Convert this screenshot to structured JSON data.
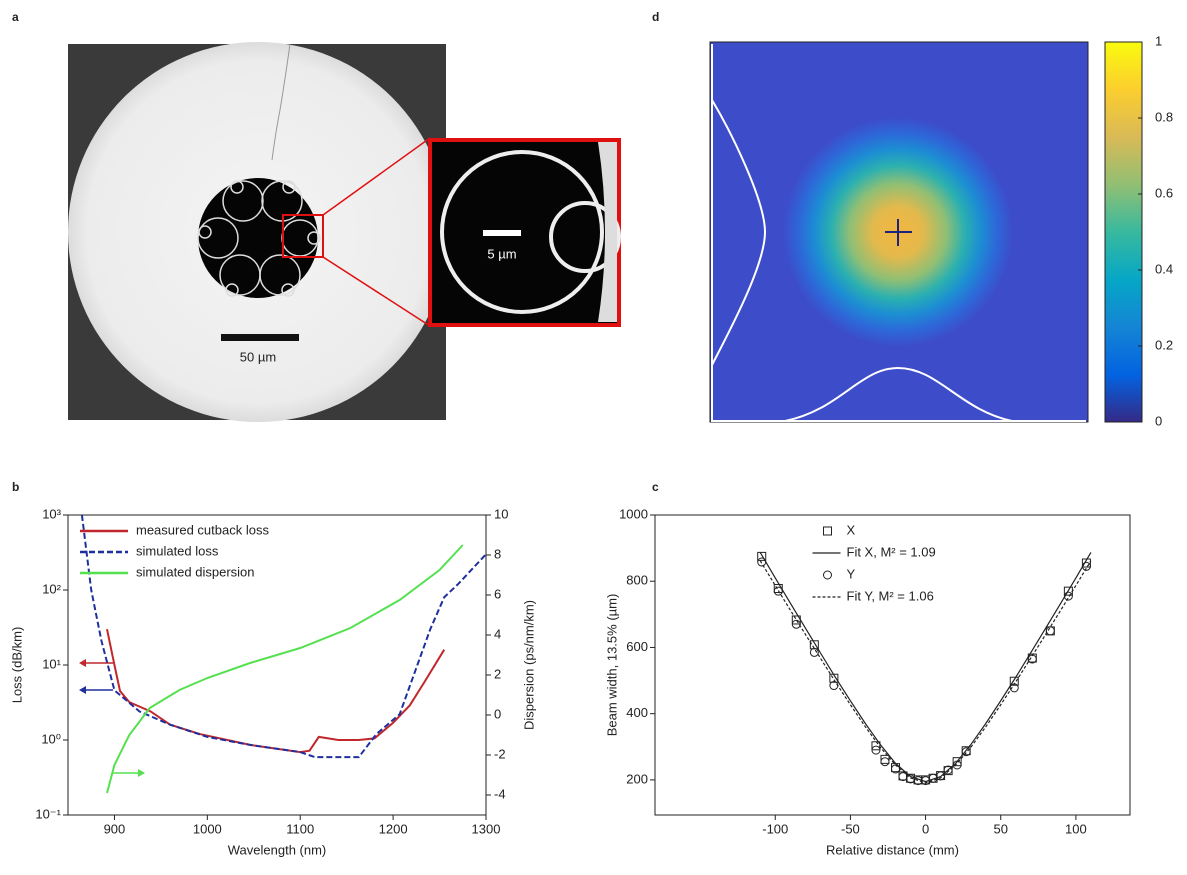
{
  "panel_labels": [
    "a",
    "d",
    "b",
    "c"
  ],
  "image_a": {
    "scale_bar_label": "50 µm",
    "inset_scale_bar_label": "5 µm"
  },
  "colorbar": {
    "lim": [
      0,
      1
    ],
    "ticks": [
      0,
      0.2,
      0.4,
      0.6,
      0.8,
      1
    ]
  },
  "chart_data": [
    {
      "type": "line",
      "xlabel": "Wavelength (nm)",
      "ylabel": "Loss (dB/km)",
      "y2label": "Dispersion (ps/nm/km)",
      "xlim": [
        850,
        1300
      ],
      "xticks": [
        900,
        1000,
        1100,
        1200,
        1300
      ],
      "ylim": [
        0.1,
        1000
      ],
      "ylog": true,
      "yticks": [
        {
          "value": 0.1,
          "label": "10⁻¹"
        },
        {
          "value": 1,
          "label": "10⁰"
        },
        {
          "value": 10,
          "label": "10¹"
        },
        {
          "value": 100,
          "label": "10²"
        },
        {
          "value": 1000,
          "label": "10³"
        }
      ],
      "y2lim": [
        -5,
        10
      ],
      "y2ticks": [
        -4,
        -2,
        0,
        2,
        4,
        6,
        8,
        10
      ],
      "legend": "upper left",
      "series": [
        {
          "name": "measured cutback loss",
          "color": "#c0282d",
          "style": "solid",
          "x": [
            892,
            900,
            906,
            916,
            939,
            960,
            992,
            1046,
            1100,
            1110,
            1120,
            1141,
            1163,
            1180,
            1200,
            1218,
            1234,
            1255
          ],
          "values": [
            30,
            10,
            4.5,
            3.2,
            2.4,
            1.6,
            1.2,
            0.86,
            0.69,
            0.72,
            1.1,
            1.0,
            1.0,
            1.05,
            1.7,
            2.9,
            6,
            16
          ]
        },
        {
          "name": "simulated loss",
          "color": "#1f2f9e",
          "style": "dashed",
          "x": [
            865,
            875,
            886,
            900,
            927,
            960,
            1000,
            1046,
            1100,
            1116,
            1163,
            1182,
            1207,
            1240,
            1255,
            1270,
            1300
          ],
          "values": [
            1000,
            100,
            21,
            4.6,
            2.4,
            1.6,
            1.1,
            0.86,
            0.69,
            0.59,
            0.59,
            1.2,
            2.2,
            30,
            80,
            120,
            300
          ]
        },
        {
          "name": "simulated dispersion",
          "color": "#55e050",
          "style": "solid",
          "axis": "y2",
          "x": [
            892,
            900,
            916,
            938,
            970,
            1000,
            1046,
            1100,
            1154,
            1207,
            1250,
            1275
          ],
          "values": [
            -3.9,
            -2.5,
            -1.0,
            0.35,
            1.25,
            1.85,
            2.6,
            3.35,
            4.35,
            5.75,
            7.25,
            8.5
          ]
        }
      ]
    },
    {
      "type": "scatter",
      "xlabel": "Relative distance (mm)",
      "ylabel": "Beam width, 13.5% (µm)",
      "xlim": [
        -180,
        136
      ],
      "xticks": [
        -100,
        -50,
        0,
        50,
        100
      ],
      "ylim": [
        94,
        1000
      ],
      "yticks": [
        200,
        400,
        600,
        800,
        1000
      ],
      "legend": "upper center",
      "series": [
        {
          "name": "X",
          "color": "#222222",
          "marker": "square",
          "x": [
            -109,
            -98,
            -86,
            -74,
            -61,
            -33,
            -27,
            -20,
            -15,
            -10,
            -5,
            0,
            5,
            10,
            15,
            21,
            27,
            59,
            71,
            83,
            95,
            107
          ],
          "values": [
            875,
            778,
            683,
            608,
            507,
            303,
            262,
            237,
            212,
            205,
            200,
            200,
            205,
            213,
            228,
            255,
            288,
            498,
            568,
            650,
            770,
            855
          ]
        },
        {
          "name": "Fit X, M² = 1.09",
          "color": "#222222",
          "style": "solid",
          "x": [
            -110,
            -100,
            -90,
            -80,
            -70,
            -60,
            -50,
            -40,
            -30,
            -20,
            -10,
            0,
            10,
            20,
            30,
            40,
            50,
            60,
            70,
            80,
            90,
            100,
            110
          ],
          "values": [
            887,
            810,
            734,
            659,
            584,
            510,
            439,
            370,
            306,
            250,
            210,
            195,
            210,
            250,
            306,
            370,
            439,
            510,
            584,
            659,
            734,
            810,
            887
          ]
        },
        {
          "name": "Y",
          "color": "#222222",
          "marker": "circle",
          "x": [
            -109,
            -98,
            -86,
            -74,
            -61,
            -33,
            -27,
            -20,
            -15,
            -10,
            -5,
            0,
            5,
            10,
            15,
            21,
            27,
            59,
            71,
            83,
            95,
            107
          ],
          "values": [
            858,
            770,
            670,
            585,
            485,
            290,
            255,
            233,
            210,
            203,
            198,
            198,
            205,
            212,
            230,
            245,
            285,
            478,
            565,
            650,
            755,
            845
          ]
        },
        {
          "name": "Fit Y, M² = 1.06",
          "color": "#222222",
          "style": "dashed",
          "x": [
            -110,
            -100,
            -90,
            -80,
            -70,
            -60,
            -50,
            -40,
            -30,
            -20,
            -10,
            0,
            10,
            20,
            30,
            40,
            50,
            60,
            70,
            80,
            90,
            100,
            110
          ],
          "values": [
            862,
            787,
            713,
            640,
            568,
            496,
            427,
            360,
            298,
            245,
            206,
            191,
            206,
            245,
            298,
            360,
            427,
            496,
            568,
            640,
            713,
            787,
            862
          ]
        }
      ]
    }
  ]
}
